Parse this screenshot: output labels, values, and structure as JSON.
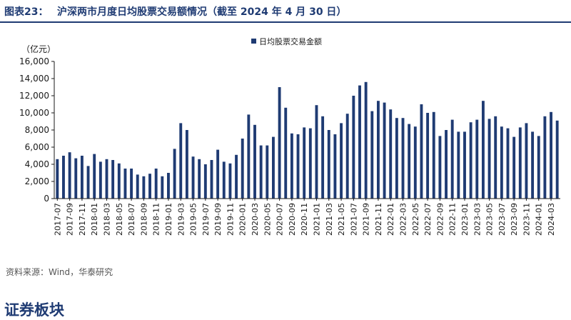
{
  "figure": {
    "number": "图表23：",
    "title": "沪深两市月度日均股票交易额情况（截至 2024 年 4 月 30 日）"
  },
  "source": "资料来源：Wind，华泰研究",
  "section_heading": "证券板块",
  "chart_data": {
    "type": "bar",
    "unit_label": "（亿元）",
    "ylim": [
      0,
      16000
    ],
    "yticks": [
      "0",
      "2,000",
      "4,000",
      "6,000",
      "8,000",
      "10,000",
      "12,000",
      "14,000",
      "16,000"
    ],
    "legend": "日均股票交易金额",
    "legend_position": "top-center",
    "bar_color": "#1f3b73",
    "categories": [
      "2017-07",
      "2017-08",
      "2017-09",
      "2017-10",
      "2017-11",
      "2017-12",
      "2018-01",
      "2018-02",
      "2018-03",
      "2018-04",
      "2018-05",
      "2018-06",
      "2018-07",
      "2018-08",
      "2018-09",
      "2018-10",
      "2018-11",
      "2018-12",
      "2019-01",
      "2019-02",
      "2019-03",
      "2019-04",
      "2019-05",
      "2019-06",
      "2019-07",
      "2019-08",
      "2019-09",
      "2019-10",
      "2019-11",
      "2019-12",
      "2020-01",
      "2020-02",
      "2020-03",
      "2020-04",
      "2020-05",
      "2020-06",
      "2020-07",
      "2020-08",
      "2020-09",
      "2020-10",
      "2020-11",
      "2020-12",
      "2021-01",
      "2021-02",
      "2021-03",
      "2021-04",
      "2021-05",
      "2021-06",
      "2021-07",
      "2021-08",
      "2021-09",
      "2021-10",
      "2021-11",
      "2021-12",
      "2022-01",
      "2022-02",
      "2022-03",
      "2022-04",
      "2022-05",
      "2022-06",
      "2022-07",
      "2022-08",
      "2022-09",
      "2022-10",
      "2022-11",
      "2022-12",
      "2023-01",
      "2023-02",
      "2023-03",
      "2023-04",
      "2023-05",
      "2023-06",
      "2023-07",
      "2023-08",
      "2023-09",
      "2023-10",
      "2023-11",
      "2023-12",
      "2024-01",
      "2024-02",
      "2024-03",
      "2024-04"
    ],
    "values": [
      4600,
      5000,
      5400,
      4700,
      5000,
      3800,
      5200,
      4300,
      4600,
      4500,
      4100,
      3500,
      3500,
      2800,
      2600,
      2900,
      3500,
      2600,
      3000,
      5800,
      8800,
      8000,
      4900,
      4600,
      4000,
      4500,
      5700,
      4300,
      4100,
      5100,
      7000,
      9800,
      8600,
      6200,
      6200,
      7200,
      13000,
      10600,
      7600,
      7500,
      8300,
      8200,
      10900,
      9600,
      8000,
      7500,
      8800,
      9900,
      12000,
      13200,
      13600,
      10200,
      11400,
      11200,
      10400,
      9400,
      9400,
      8700,
      8400,
      11000,
      10000,
      10100,
      7300,
      8000,
      9200,
      7800,
      7800,
      8900,
      9200,
      11400,
      9300,
      9600,
      8400,
      8200,
      7200,
      8300,
      8800,
      7800,
      7300,
      9600,
      10100,
      9100
    ]
  }
}
